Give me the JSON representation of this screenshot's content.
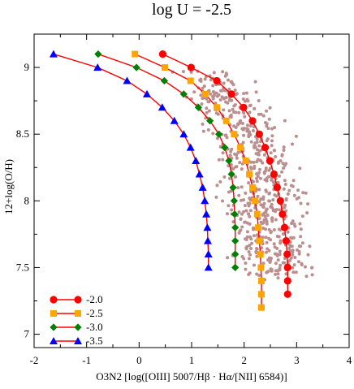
{
  "chart_data": {
    "type": "scatter",
    "title": "log U = -2.5",
    "xlabel": "O3N2 [log([OIII] 5007/Hβ · Hα/[NII] 6584)]",
    "ylabel": "12+log(O/H)",
    "xlim": [
      -2,
      4
    ],
    "ylim": [
      6.9,
      9.25
    ],
    "xticks": [
      -2,
      -1,
      0,
      1,
      2,
      3,
      4
    ],
    "yticks": [
      7,
      7.5,
      8,
      8.5,
      9
    ],
    "xtick_labels": [
      "-2",
      "-1",
      "0",
      "1",
      "2",
      "3",
      "4"
    ],
    "ytick_labels": [
      "7",
      "7.5",
      "8",
      "8.5",
      "9"
    ],
    "legend_position": "bottom-left",
    "line_color": "#ff0000",
    "scatter_color": "#bc8f8f",
    "series": [
      {
        "name": "-2.0",
        "marker": "circle",
        "color": "#ff0000",
        "x": [
          0.45,
          0.99,
          1.48,
          1.76,
          1.99,
          2.16,
          2.29,
          2.4,
          2.49,
          2.57,
          2.63,
          2.69,
          2.73,
          2.77,
          2.8,
          2.82,
          2.83,
          2.83,
          2.83
        ],
        "y": [
          9.1,
          9.0,
          8.9,
          8.8,
          8.7,
          8.6,
          8.5,
          8.4,
          8.3,
          8.2,
          8.1,
          8.0,
          7.9,
          7.8,
          7.7,
          7.6,
          7.5,
          7.4,
          7.3
        ]
      },
      {
        "name": "-2.5",
        "marker": "square",
        "color": "#ffa500",
        "x": [
          -0.08,
          0.49,
          0.98,
          1.26,
          1.48,
          1.66,
          1.81,
          1.93,
          2.03,
          2.1,
          2.16,
          2.21,
          2.25,
          2.27,
          2.29,
          2.31,
          2.32,
          2.33,
          2.33,
          2.33
        ],
        "y": [
          9.1,
          9.0,
          8.9,
          8.8,
          8.7,
          8.6,
          8.5,
          8.4,
          8.3,
          8.2,
          8.1,
          8.0,
          7.9,
          7.8,
          7.7,
          7.6,
          7.5,
          7.4,
          7.3,
          7.2
        ]
      },
      {
        "name": "-3.0",
        "marker": "diamond",
        "color": "#008000",
        "x": [
          -0.78,
          -0.05,
          0.48,
          0.85,
          1.13,
          1.35,
          1.52,
          1.63,
          1.71,
          1.76,
          1.79,
          1.81,
          1.82,
          1.83,
          1.83,
          1.83,
          1.83
        ],
        "y": [
          9.1,
          9.0,
          8.9,
          8.8,
          8.7,
          8.6,
          8.5,
          8.4,
          8.3,
          8.2,
          8.1,
          8.0,
          7.9,
          7.8,
          7.7,
          7.6,
          7.5
        ]
      },
      {
        "name": "-3.5",
        "marker": "triangle",
        "color": "#0000ff",
        "x": [
          -1.63,
          -0.79,
          -0.23,
          0.15,
          0.44,
          0.67,
          0.85,
          0.98,
          1.08,
          1.15,
          1.21,
          1.25,
          1.28,
          1.3,
          1.31,
          1.32,
          1.32
        ],
        "y": [
          9.1,
          9.0,
          8.9,
          8.8,
          8.7,
          8.6,
          8.5,
          8.4,
          8.3,
          8.2,
          8.1,
          8.0,
          7.9,
          7.8,
          7.7,
          7.6,
          7.5
        ]
      }
    ]
  }
}
